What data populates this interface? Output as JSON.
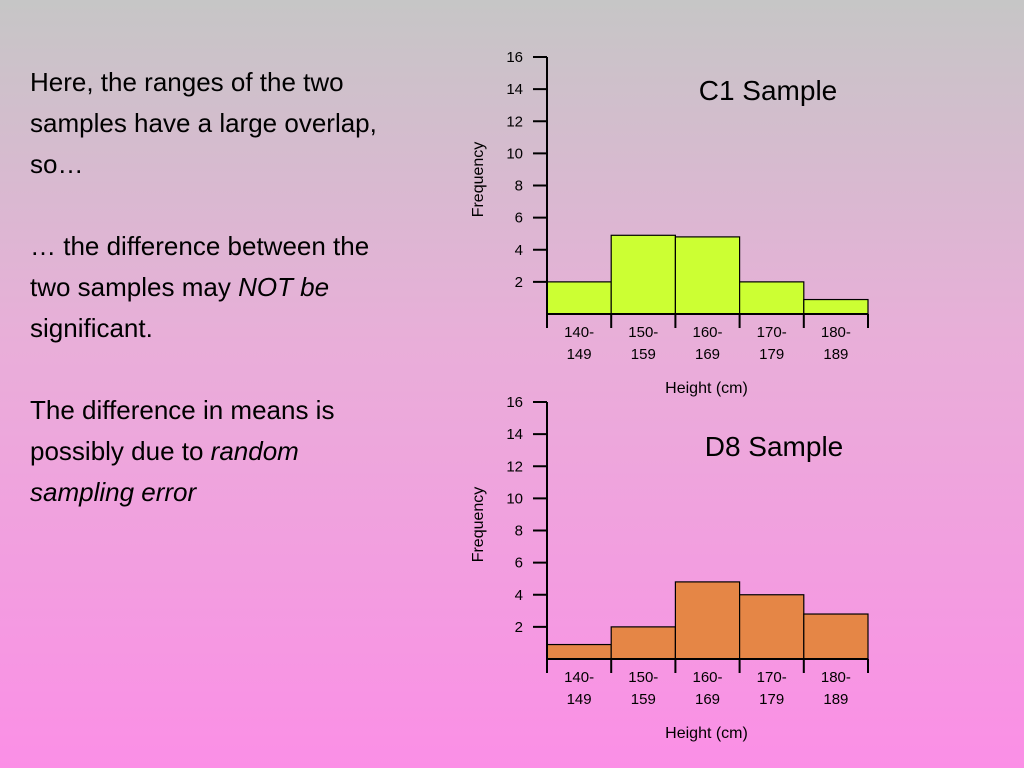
{
  "text_panel": {
    "para1": "Here, the ranges of the two samples have a large overlap, so…",
    "para2_start": "… the difference between the two samples may ",
    "para2_emph": "NOT be",
    "para2_end": " significant.",
    "para3_start": "The difference in means is possibly due to ",
    "para3_emph": "random sampling error"
  },
  "chart_data": [
    {
      "type": "bar",
      "title": "C1 Sample",
      "xlabel": "Height (cm)",
      "ylabel": "Frequency",
      "categories": [
        "140-149",
        "150-159",
        "160-169",
        "170-179",
        "180-189"
      ],
      "category_lines": [
        [
          "140-",
          "149"
        ],
        [
          "150-",
          "159"
        ],
        [
          "160-",
          "169"
        ],
        [
          "170-",
          "179"
        ],
        [
          "180-",
          "189"
        ]
      ],
      "values": [
        2,
        4.9,
        4.8,
        2,
        0.9
      ],
      "ylim": [
        0,
        16
      ],
      "yticks": [
        2,
        4,
        6,
        8,
        10,
        12,
        14,
        16
      ],
      "bar_color": "#ccff33",
      "grid": false
    },
    {
      "type": "bar",
      "title": "D8 Sample",
      "xlabel": "Height (cm)",
      "ylabel": "Frequency",
      "categories": [
        "140-149",
        "150-159",
        "160-169",
        "170-179",
        "180-189"
      ],
      "category_lines": [
        [
          "140-",
          "149"
        ],
        [
          "150-",
          "159"
        ],
        [
          "160-",
          "169"
        ],
        [
          "170-",
          "179"
        ],
        [
          "180-",
          "189"
        ]
      ],
      "values": [
        0.9,
        2,
        4.8,
        4,
        2.8
      ],
      "ylim": [
        0,
        16
      ],
      "yticks": [
        2,
        4,
        6,
        8,
        10,
        12,
        14,
        16
      ],
      "bar_color": "#e58646",
      "grid": false
    }
  ]
}
